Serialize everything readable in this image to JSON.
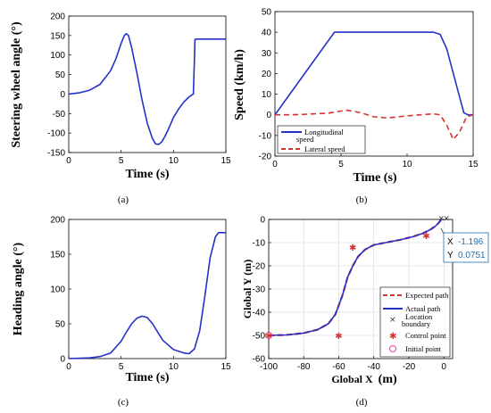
{
  "colors": {
    "blue": "#2431c8",
    "red": "#d9302c",
    "grid": "#d6d6d6",
    "magenta": "#e04aa0",
    "tip_value": "#1f6fb2"
  },
  "chart_data": [
    {
      "id": "a",
      "type": "line",
      "caption": "(a)",
      "xlabel": "Time (s)",
      "ylabel": "Steering wheel angle (°)",
      "xlim": [
        0,
        15
      ],
      "ylim": [
        -150,
        200
      ],
      "xticks": [
        "0",
        "5",
        "10",
        "15"
      ],
      "yticks": [
        "-150",
        "-100",
        "-50",
        "0",
        "50",
        "100",
        "150",
        "200"
      ],
      "grid": false,
      "series": [
        {
          "color": "blue",
          "x": [
            0,
            1,
            2,
            3,
            4,
            4.5,
            5,
            5.3,
            5.5,
            5.7,
            6,
            6.5,
            7,
            7.5,
            8,
            8.3,
            8.6,
            8.9,
            9.2,
            9.6,
            10,
            10.5,
            11,
            11.5,
            11.9,
            12.0,
            12.05,
            12.2,
            15
          ],
          "y": [
            0,
            3,
            10,
            25,
            60,
            90,
            130,
            150,
            155,
            150,
            120,
            55,
            -15,
            -75,
            -115,
            -128,
            -129,
            -122,
            -108,
            -85,
            -60,
            -38,
            -20,
            -7,
            0,
            90,
            140,
            141,
            141
          ]
        }
      ]
    },
    {
      "id": "b",
      "type": "line",
      "caption": "(b)",
      "xlabel": "Time (s)",
      "ylabel": "Speed (km/h)",
      "xlim": [
        0,
        15
      ],
      "ylim": [
        -20,
        50
      ],
      "xticks": [
        "0",
        "5",
        "10",
        "15"
      ],
      "yticks": [
        "-20",
        "-10",
        "0",
        "10",
        "20",
        "30",
        "40",
        "50"
      ],
      "grid": false,
      "legend_position": "bottom-left",
      "series": [
        {
          "name": "Longitudinal speed",
          "color": "blue",
          "style": "solid",
          "x": [
            0,
            4.5,
            12,
            12.5,
            13,
            13.5,
            14,
            14.3,
            14.6,
            15
          ],
          "y": [
            0,
            40,
            40,
            39,
            32,
            20,
            8,
            1,
            0,
            0
          ]
        },
        {
          "name": "Lateral speed",
          "color": "red",
          "style": "dashed",
          "x": [
            0,
            1,
            2,
            3,
            4,
            5,
            5.5,
            6.5,
            7.5,
            8.5,
            10,
            11,
            12,
            12.5,
            13,
            13.5,
            14,
            14.5,
            15
          ],
          "y": [
            0,
            0,
            0.2,
            0.5,
            0.8,
            1.8,
            2.2,
            1,
            -1,
            -1.5,
            -0.5,
            0,
            0.5,
            0,
            -5,
            -12,
            -8,
            -1,
            0
          ]
        }
      ]
    },
    {
      "id": "c",
      "type": "line",
      "caption": "(c)",
      "xlabel": "Time (s)",
      "ylabel": "Heading angle (°)",
      "xlim": [
        0,
        15
      ],
      "ylim": [
        0,
        200
      ],
      "xticks": [
        "0",
        "5",
        "10",
        "15"
      ],
      "yticks": [
        "0",
        "50",
        "100",
        "150",
        "200"
      ],
      "grid": false,
      "series": [
        {
          "color": "blue",
          "x": [
            0,
            2,
            3,
            4,
            5,
            5.5,
            6,
            6.5,
            7,
            7.5,
            8,
            8.5,
            9,
            10,
            11,
            11.5,
            12,
            12.5,
            13,
            13.5,
            14,
            14.3,
            15
          ],
          "y": [
            0,
            1,
            3,
            8,
            25,
            38,
            50,
            58,
            61,
            59,
            50,
            38,
            26,
            13,
            8,
            7,
            14,
            40,
            90,
            145,
            175,
            181,
            181
          ]
        }
      ]
    },
    {
      "id": "d",
      "type": "line",
      "caption": "(d)",
      "xlabel": "Global X",
      "xlabel_unit": "(m)",
      "ylabel": "Global Y (m)",
      "xlim": [
        -100,
        5
      ],
      "ylim": [
        -60,
        0
      ],
      "xticks": [
        "-100",
        "-80",
        "-60",
        "-40",
        "-20",
        "0"
      ],
      "yticks": [
        "-60",
        "-50",
        "-40",
        "-30",
        "-20",
        "-10",
        "0"
      ],
      "grid": true,
      "legend_position": "bottom-right",
      "series": [
        {
          "name": "Expected path",
          "color": "red",
          "style": "dashed",
          "x": [
            -100,
            -90,
            -80,
            -72,
            -66,
            -62,
            -58,
            -55,
            -52,
            -49,
            -45,
            -40,
            -32,
            -25,
            -18,
            -12,
            -8,
            -5,
            -3,
            -1.196
          ],
          "y": [
            -50,
            -49.8,
            -49,
            -47.5,
            -45,
            -41,
            -33,
            -25,
            -20,
            -16,
            -13,
            -11,
            -9.8,
            -8.8,
            -7.5,
            -6,
            -4.5,
            -3,
            -1.5,
            0.0751
          ]
        },
        {
          "name": "Actual path",
          "color": "blue",
          "style": "solid",
          "x": [
            -100,
            -90,
            -80,
            -72,
            -66,
            -62,
            -58,
            -55,
            -52,
            -49,
            -45,
            -40,
            -32,
            -25,
            -18,
            -12,
            -8,
            -5,
            -3,
            -1.196
          ],
          "y": [
            -50,
            -49.8,
            -49,
            -47.5,
            -45,
            -41,
            -33,
            -25,
            -20,
            -16,
            -13,
            -11,
            -9.8,
            -8.8,
            -7.5,
            -6,
            -4.5,
            -3,
            -1.5,
            0.0751
          ]
        }
      ],
      "location_boundary": [
        [
          -1.5,
          0.5
        ],
        [
          1.5,
          0.5
        ]
      ],
      "control_points": [
        [
          -52,
          -12
        ],
        [
          -60,
          -50
        ],
        [
          -10,
          -7
        ]
      ],
      "initial_point": [
        -100,
        -50
      ],
      "legend": [
        "Expected path",
        "Actual path",
        "Location boundary",
        "Control point",
        "Initial point"
      ],
      "datatip": {
        "x_label": "X",
        "x_value": "-1.196",
        "y_label": "Y",
        "y_value": "0.0751"
      }
    }
  ]
}
